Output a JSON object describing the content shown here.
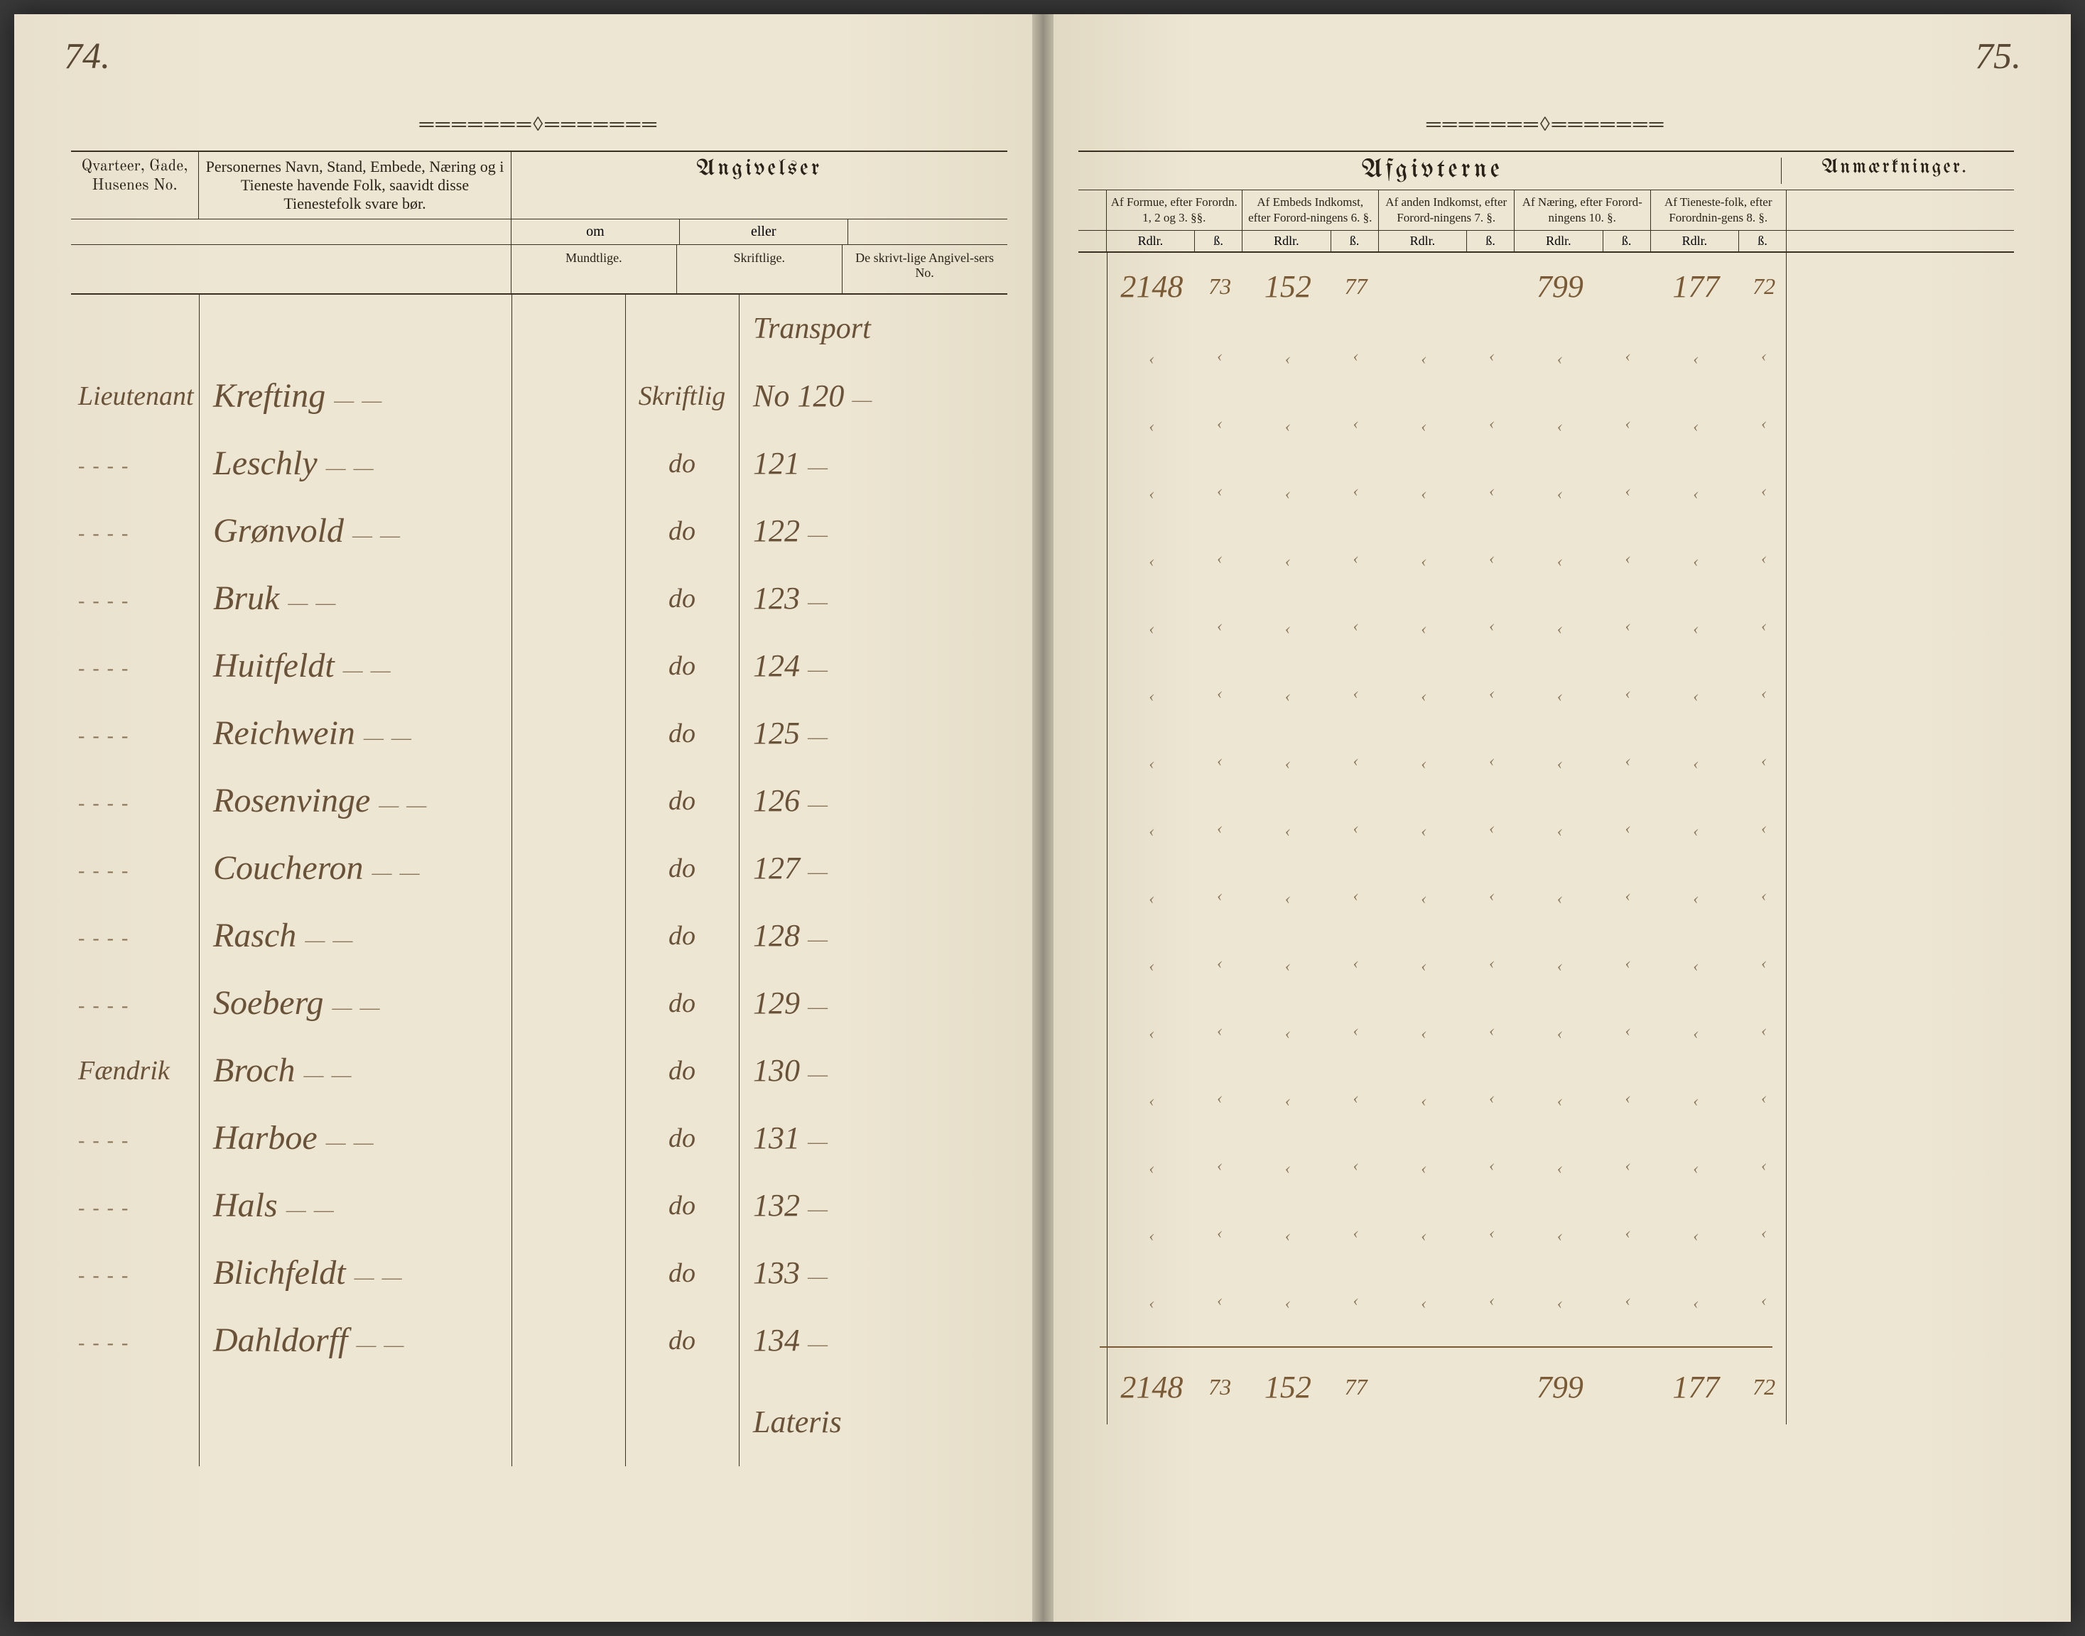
{
  "page_numbers": {
    "left": "74.",
    "right": "75."
  },
  "ornament": "═══════◊═══════",
  "left_headers": {
    "qvarteer": "Qvarteer, Gade, Husenes No.",
    "personer": "Personernes Navn, Stand, Embede, Næring og i Tieneste havende Folk, saavidt disse Tienestefolk svare bør.",
    "angivelser": "Angivelser",
    "om": "om",
    "eller": "eller",
    "mundtlige": "Mundtlige.",
    "skriftlige": "Skriftlige.",
    "skrivt_no": "De skrivt-lige Angivel-sers No."
  },
  "right_headers": {
    "afgivterne": "Afgivterne",
    "anmaerkninger": "Anmærkninger.",
    "cols": [
      "Af Formue, efter Forordn. 1, 2 og 3. §§.",
      "Af Embeds Indkomst, efter Forord-ningens 6. §.",
      "Af anden Indkomst, efter Forord-ningens 7. §.",
      "Af Næring, efter Forord-ningens 10. §.",
      "Af Tieneste-folk, efter Forordnin-gens 8. §."
    ],
    "rdlr": "Rdlr.",
    "beta": "ß."
  },
  "transport_label": "Transport",
  "lateris_label": "Lateris",
  "rows": [
    {
      "rank": "Lieutenant",
      "name": "Krefting",
      "skrift": "Skriftlig",
      "no": "No 120"
    },
    {
      "rank": "",
      "name": "Leschly",
      "skrift": "do",
      "no": "121"
    },
    {
      "rank": "",
      "name": "Grønvold",
      "skrift": "do",
      "no": "122"
    },
    {
      "rank": "",
      "name": "Bruk",
      "skrift": "do",
      "no": "123"
    },
    {
      "rank": "",
      "name": "Huitfeldt",
      "skrift": "do",
      "no": "124"
    },
    {
      "rank": "",
      "name": "Reichwein",
      "skrift": "do",
      "no": "125"
    },
    {
      "rank": "",
      "name": "Rosenvinge",
      "skrift": "do",
      "no": "126"
    },
    {
      "rank": "",
      "name": "Coucheron",
      "skrift": "do",
      "no": "127"
    },
    {
      "rank": "",
      "name": "Rasch",
      "skrift": "do",
      "no": "128"
    },
    {
      "rank": "",
      "name": "Soeberg",
      "skrift": "do",
      "no": "129"
    },
    {
      "rank": "Fændrik",
      "name": "Broch",
      "skrift": "do",
      "no": "130"
    },
    {
      "rank": "",
      "name": "Harboe",
      "skrift": "do",
      "no": "131"
    },
    {
      "rank": "",
      "name": "Hals",
      "skrift": "do",
      "no": "132"
    },
    {
      "rank": "",
      "name": "Blichfeldt",
      "skrift": "do",
      "no": "133"
    },
    {
      "rank": "",
      "name": "Dahldorff",
      "skrift": "do",
      "no": "134"
    }
  ],
  "transport_values": {
    "c1": "2148",
    "c1s": "73",
    "c2": "152",
    "c2s": "77",
    "c3": "",
    "c3s": "",
    "c4": "799",
    "c4s": "",
    "c5": "177",
    "c5s": "72"
  },
  "lateris_values": {
    "c1": "2148",
    "c1s": "73",
    "c2": "152",
    "c2s": "77",
    "c3": "",
    "c3s": "",
    "c4": "799",
    "c4s": "",
    "c5": "177",
    "c5s": "72"
  },
  "colors": {
    "paper": "#ede6d3",
    "ink_print": "#2a2218",
    "ink_script": "#6a5238",
    "rule": "#3a2f20"
  }
}
